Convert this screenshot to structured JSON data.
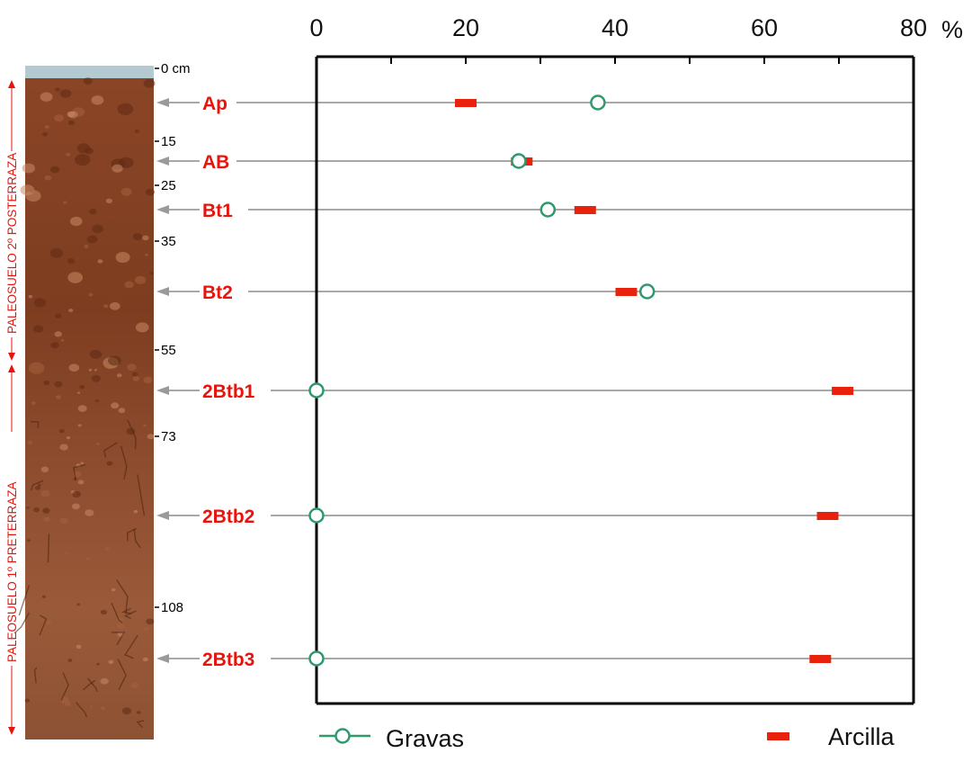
{
  "chart_data": {
    "type": "scatter",
    "title": "",
    "x_unit": "%",
    "xlim": [
      0,
      80
    ],
    "x_ticks": [
      0,
      20,
      40,
      60,
      80
    ],
    "x_tick_labels": [
      "0",
      "20",
      "40",
      "60",
      "80"
    ],
    "grid": false,
    "legend_position": "bottom",
    "categories": [
      "Ap",
      "AB",
      "Bt1",
      "Bt2",
      "2Btb1",
      "2Btb2",
      "2Btb3"
    ],
    "series": [
      {
        "name": "Gravas",
        "marker": "open-circle",
        "color": "#2e9a6c",
        "values": [
          37.7,
          27.1,
          31.0,
          44.3,
          0,
          0,
          0
        ]
      },
      {
        "name": "Arcilla",
        "marker": "dash",
        "color": "#e8220c",
        "values": [
          20.0,
          27.5,
          36.0,
          41.5,
          70.5,
          68.5,
          67.5
        ]
      }
    ],
    "depth_axis": {
      "unit_label": "0 cm",
      "ticks": [
        {
          "value": 0,
          "label": "0 cm"
        },
        {
          "value": 15,
          "label": "15"
        },
        {
          "value": 25,
          "label": "25"
        },
        {
          "value": 35,
          "label": "35"
        },
        {
          "value": 55,
          "label": "55"
        },
        {
          "value": 73,
          "label": "73"
        },
        {
          "value": 108,
          "label": "108"
        }
      ]
    },
    "side_labels": {
      "upper": "PALEOSUELO 2º POSTERRAZA",
      "lower": "PALEOSUELO 1º PRETERRAZA"
    },
    "colors": {
      "horizon_text": "#e8140c",
      "axis": "#000000",
      "guide_line": "#a8a8a8",
      "soil_dark": "#7a3a1c",
      "soil_light": "#b06a45",
      "sky": "#b3cbd0"
    }
  }
}
